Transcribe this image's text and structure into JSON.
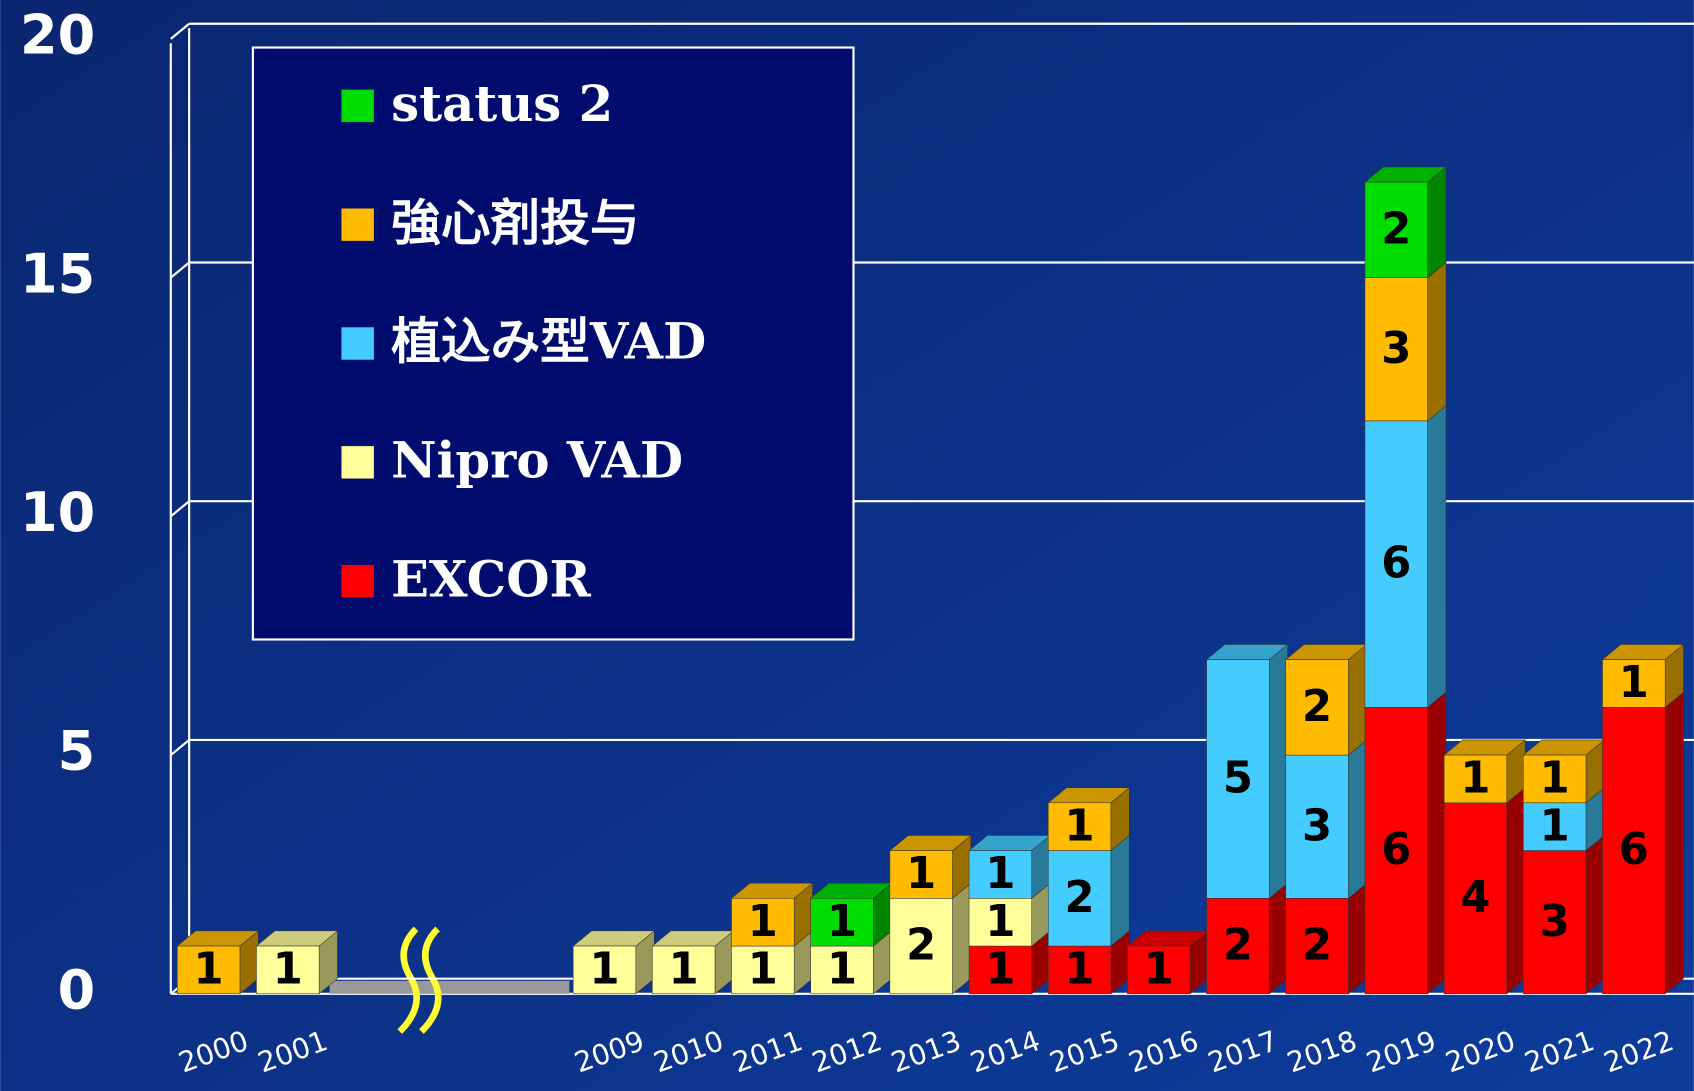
{
  "chart_data": {
    "type": "stacked-bar-3d",
    "categories": [
      "2000",
      "2001",
      null,
      null,
      null,
      "2009",
      "2010",
      "2011",
      "2012",
      "2013",
      "2014",
      "2015",
      "2016",
      "2017",
      "2018",
      "2019",
      "2020",
      "2021",
      "2022"
    ],
    "series": [
      {
        "name": "EXCOR",
        "color": "#ff0000",
        "values": [
          null,
          null,
          null,
          null,
          null,
          null,
          null,
          null,
          null,
          null,
          1,
          1,
          1,
          2,
          2,
          6,
          4,
          3,
          6
        ]
      },
      {
        "name": "Nipro VAD",
        "color": "#ffff99",
        "values": [
          null,
          1,
          null,
          null,
          null,
          1,
          1,
          1,
          1,
          2,
          1,
          null,
          null,
          null,
          null,
          null,
          null,
          null,
          null
        ]
      },
      {
        "name": "植込み型VAD",
        "color": "#44ccff",
        "values": [
          null,
          null,
          null,
          null,
          null,
          null,
          null,
          null,
          null,
          null,
          1,
          2,
          null,
          5,
          3,
          6,
          null,
          1,
          null
        ]
      },
      {
        "name": "強心剤投与",
        "color": "#ffbb00",
        "values": [
          1,
          null,
          null,
          null,
          null,
          null,
          null,
          1,
          null,
          1,
          null,
          1,
          null,
          null,
          2,
          3,
          1,
          1,
          1
        ]
      },
      {
        "name": "status 2",
        "color": "#00dd00",
        "values": [
          null,
          null,
          null,
          null,
          null,
          null,
          null,
          null,
          1,
          null,
          null,
          null,
          null,
          null,
          null,
          2,
          null,
          null,
          null
        ]
      }
    ],
    "ylim": [
      0,
      20
    ],
    "yticks": [
      0,
      5,
      10,
      15,
      20
    ],
    "grid": true
  }
}
